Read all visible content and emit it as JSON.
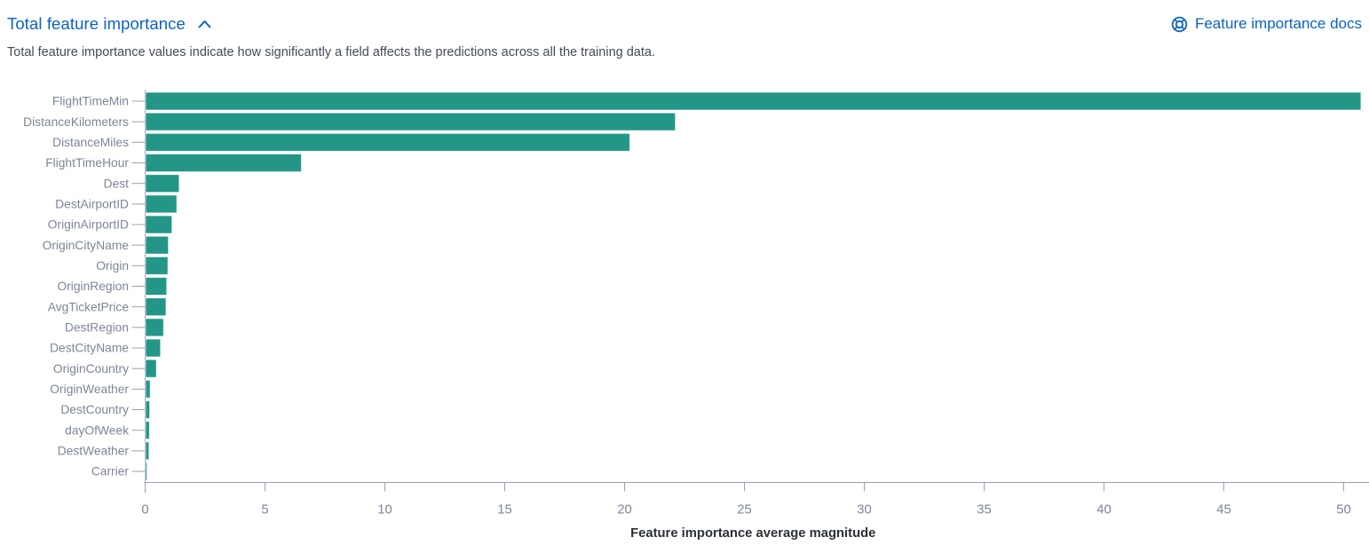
{
  "header": {
    "title": "Total feature importance",
    "collapse_icon": "chevron-up-icon",
    "docs_link_label": "Feature importance docs",
    "docs_link_icon": "documentation-icon"
  },
  "description": "Total feature importance values indicate how significantly a field affects the predictions across all the training data.",
  "colors": {
    "link_blue": "#0a62c9",
    "bar_teal": "#249688",
    "axis_gray": "#98a2b3",
    "tick_label_gray": "#7d8598",
    "description_text": "#434a58",
    "axis_title_text": "#2c3037"
  },
  "chart_data": {
    "type": "bar",
    "orientation": "horizontal",
    "title": "",
    "xlabel": "Feature importance average magnitude",
    "ylabel": "",
    "xlim": [
      0,
      51
    ],
    "xticks": [
      0,
      5,
      10,
      15,
      20,
      25,
      30,
      35,
      40,
      45,
      50
    ],
    "grid": false,
    "legend": "none",
    "categories": [
      "FlightTimeMin",
      "DistanceKilometers",
      "DistanceMiles",
      "FlightTimeHour",
      "Dest",
      "DestAirportID",
      "OriginAirportID",
      "OriginCityName",
      "Origin",
      "OriginRegion",
      "AvgTicketPrice",
      "DestRegion",
      "DestCityName",
      "OriginCountry",
      "OriginWeather",
      "DestCountry",
      "dayOfWeek",
      "DestWeather",
      "Carrier"
    ],
    "values": [
      50.7,
      22.1,
      20.2,
      6.5,
      1.4,
      1.3,
      1.1,
      0.95,
      0.93,
      0.88,
      0.85,
      0.75,
      0.62,
      0.45,
      0.19,
      0.17,
      0.16,
      0.14,
      0.06
    ]
  }
}
